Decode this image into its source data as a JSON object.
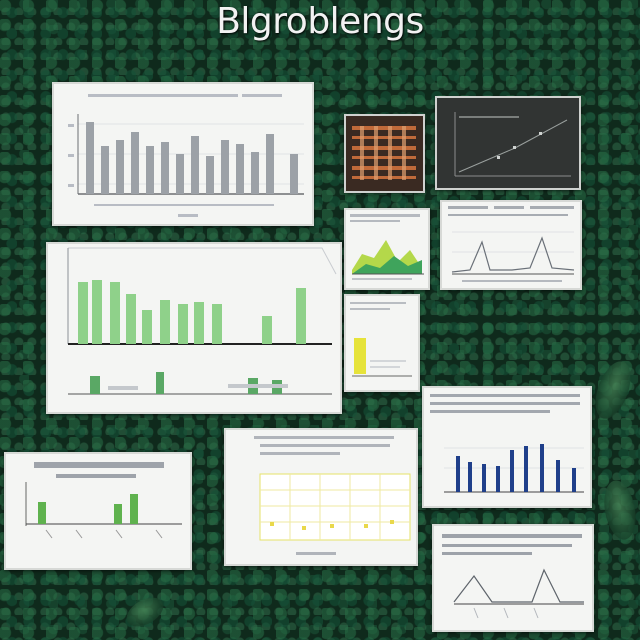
{
  "title": "Blgroblengs"
}
